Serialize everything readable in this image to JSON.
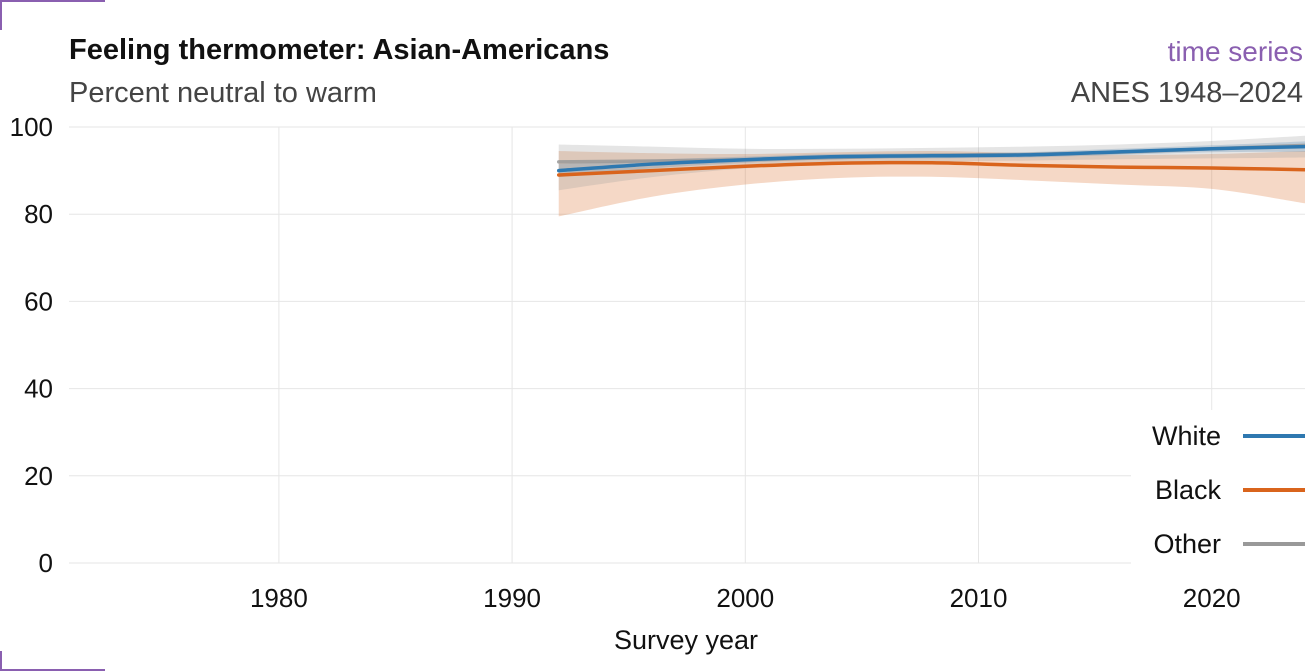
{
  "header": {
    "title": "Feeling thermometer: Asian-Americans",
    "subtitle": "Percent neutral to warm",
    "tag": "time series",
    "source": "ANES 1948–2024"
  },
  "colors": {
    "accent": "#8a5fb0",
    "white_series": "#2e78b0",
    "black_series": "#d9641c",
    "other_series": "#999999",
    "grid": "#e6e6e6"
  },
  "chart_data": {
    "type": "line",
    "title": "Feeling thermometer: Asian-Americans",
    "subtitle": "Percent neutral to warm",
    "xlabel": "Survey year",
    "ylabel": "",
    "xlim": [
      1971,
      2024
    ],
    "ylim": [
      0,
      100
    ],
    "x_ticks": [
      1980,
      1990,
      2000,
      2010,
      2020
    ],
    "y_ticks": [
      0,
      20,
      40,
      60,
      80,
      100
    ],
    "grid": true,
    "legend_position": "bottom-right",
    "series": [
      {
        "name": "White",
        "color": "#2e78b0",
        "x": [
          1992,
          1996,
          2000,
          2004,
          2008,
          2012,
          2016,
          2020,
          2024
        ],
        "y": [
          90.0,
          91.5,
          92.5,
          93.2,
          93.4,
          93.6,
          94.3,
          95.0,
          95.5
        ],
        "lower": [
          88.5,
          90.5,
          91.8,
          92.6,
          92.8,
          93.0,
          93.6,
          94.2,
          94.3
        ],
        "upper": [
          91.5,
          92.5,
          93.2,
          93.8,
          94.0,
          94.2,
          95.0,
          95.8,
          96.7
        ]
      },
      {
        "name": "Black",
        "color": "#d9641c",
        "x": [
          1992,
          1996,
          2000,
          2004,
          2008,
          2012,
          2016,
          2020,
          2024
        ],
        "y": [
          89.0,
          90.0,
          91.0,
          91.7,
          91.8,
          91.2,
          90.8,
          90.6,
          90.2
        ],
        "lower": [
          79.5,
          84.0,
          86.8,
          88.3,
          88.6,
          87.8,
          86.8,
          85.8,
          82.5
        ],
        "upper": [
          94.5,
          94.0,
          93.8,
          94.2,
          94.5,
          94.0,
          93.6,
          93.8,
          94.5
        ]
      },
      {
        "name": "Other",
        "color": "#999999",
        "x": [
          1992,
          1996,
          2000,
          2004,
          2008,
          2012,
          2016,
          2020,
          2024
        ],
        "y": [
          92.0,
          92.2,
          92.5,
          93.0,
          93.5,
          93.7,
          94.2,
          95.0,
          95.8
        ],
        "lower": [
          85.5,
          88.5,
          90.5,
          91.5,
          92.0,
          92.3,
          92.6,
          92.8,
          93.0
        ],
        "upper": [
          96.0,
          95.5,
          95.0,
          95.0,
          95.2,
          95.5,
          96.0,
          96.8,
          98.0
        ]
      }
    ]
  }
}
